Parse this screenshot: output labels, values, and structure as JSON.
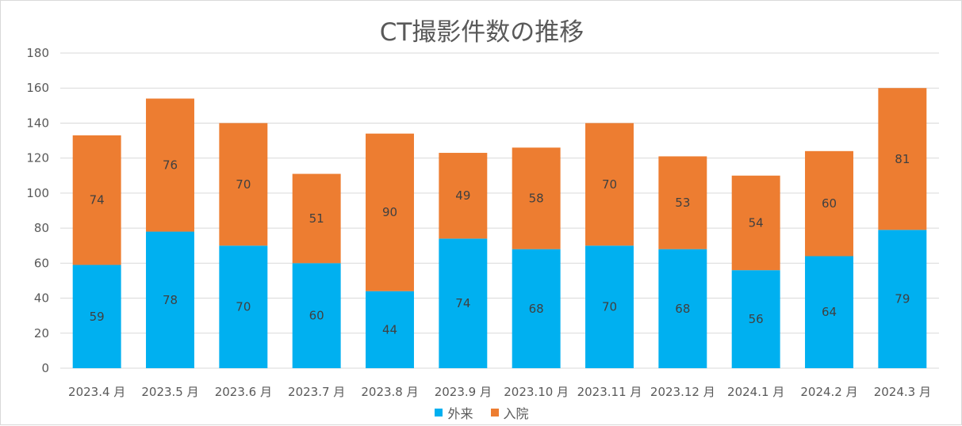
{
  "chart_data": {
    "type": "bar",
    "stacked": true,
    "title": "CT撮影件数の推移",
    "categories": [
      "2023.4 月",
      "2023.5 月",
      "2023.6 月",
      "2023.7 月",
      "2023.8 月",
      "2023.9 月",
      "2023.10 月",
      "2023.11 月",
      "2023.12 月",
      "2024.1 月",
      "2024.2 月",
      "2024.3 月"
    ],
    "series": [
      {
        "name": "外来",
        "color": "#00b0f0",
        "values": [
          59,
          78,
          70,
          60,
          44,
          74,
          68,
          70,
          68,
          56,
          64,
          79
        ]
      },
      {
        "name": "入院",
        "color": "#ed7d31",
        "values": [
          74,
          76,
          70,
          51,
          90,
          49,
          58,
          70,
          53,
          54,
          60,
          81
        ]
      }
    ],
    "ylim": [
      0,
      180
    ],
    "yticks": [
      0,
      20,
      40,
      60,
      80,
      100,
      120,
      140,
      160,
      180
    ],
    "grid": true,
    "data_labels": true,
    "legend": "bottom"
  }
}
